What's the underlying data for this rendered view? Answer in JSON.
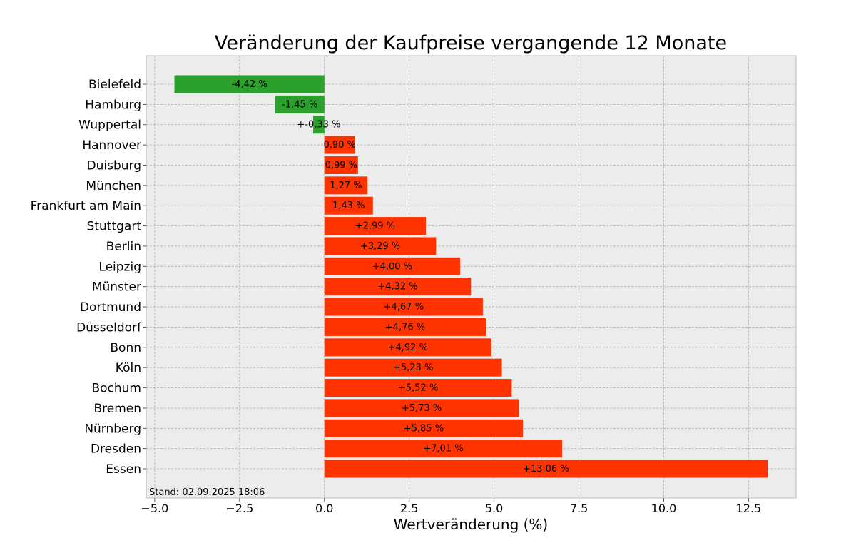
{
  "chart_data": {
    "type": "bar",
    "orientation": "horizontal",
    "title": "Veränderung der Kaufpreise vergangende 12 Monate",
    "xlabel": "Wertveränderung (%)",
    "ylabel": "",
    "xlim": [
      -5.25,
      13.9
    ],
    "xticks": [
      -5.0,
      -2.5,
      0.0,
      2.5,
      5.0,
      7.5,
      10.0,
      12.5
    ],
    "xtick_labels": [
      "−5.0",
      "−2.5",
      "0.0",
      "2.5",
      "5.0",
      "7.5",
      "10.0",
      "12.5"
    ],
    "grid": true,
    "categories": [
      "Bielefeld",
      "Hamburg",
      "Wuppertal",
      "Hannover",
      "Duisburg",
      "München",
      "Frankfurt am Main",
      "Stuttgart",
      "Berlin",
      "Leipzig",
      "Münster",
      "Dortmund",
      "Düsseldorf",
      "Bonn",
      "Köln",
      "Bochum",
      "Bremen",
      "Nürnberg",
      "Dresden",
      "Essen"
    ],
    "values": [
      -4.42,
      -1.45,
      -0.33,
      0.9,
      0.99,
      1.27,
      1.43,
      2.99,
      3.29,
      4.0,
      4.32,
      4.67,
      4.76,
      4.92,
      5.23,
      5.52,
      5.73,
      5.85,
      7.01,
      13.06
    ],
    "data_labels": [
      "-4,42 %",
      "-1,45 %",
      "+-0,33 %",
      "0,90 %",
      "0,99 %",
      "1,27 %",
      "1,43 %",
      "+2,99 %",
      "+3,29 %",
      "+4,00 %",
      "+4,32 %",
      "+4,67 %",
      "+4,76 %",
      "+4,92 %",
      "+5,23 %",
      "+5,52 %",
      "+5,73 %",
      "+5,85 %",
      "+7,01 %",
      "+13,06 %"
    ],
    "colors": {
      "negative": "#2ca02c",
      "positive": "#ff3300",
      "plot_background": "#ececec",
      "grid": "#b0b0b0",
      "frame": "#bcbcbc"
    },
    "annotation": "Stand: 02.09.2025 18:06"
  }
}
